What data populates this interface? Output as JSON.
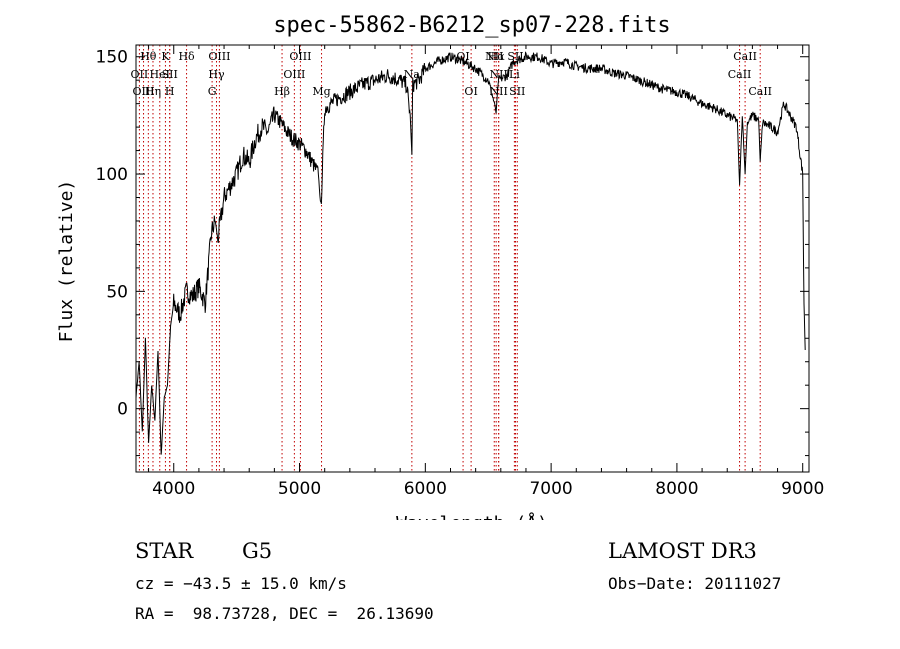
{
  "chart_data": {
    "type": "line",
    "title": "spec-55862-B6212_sp07-228.fits",
    "xlabel": "Wavelength (Å)",
    "ylabel": "Flux (relative)",
    "xlim": [
      3700,
      9050
    ],
    "ylim": [
      -27,
      155
    ],
    "xticks": [
      4000,
      5000,
      6000,
      7000,
      8000,
      9000
    ],
    "yticks": [
      0,
      50,
      100,
      150
    ],
    "series": [
      {
        "name": "spectrum",
        "x": [
          3700,
          3725,
          3750,
          3775,
          3800,
          3825,
          3850,
          3875,
          3900,
          3925,
          3950,
          3975,
          4000,
          4050,
          4100,
          4150,
          4200,
          4250,
          4300,
          4330,
          4350,
          4400,
          4450,
          4500,
          4550,
          4600,
          4650,
          4700,
          4750,
          4800,
          4850,
          4900,
          4950,
          5000,
          5050,
          5100,
          5150,
          5170,
          5200,
          5250,
          5300,
          5400,
          5500,
          5600,
          5700,
          5800,
          5850,
          5880,
          5893,
          5900,
          5950,
          6000,
          6100,
          6200,
          6300,
          6400,
          6500,
          6550,
          6563,
          6580,
          6650,
          6700,
          6800,
          6900,
          7000,
          7100,
          7200,
          7300,
          7400,
          7500,
          7600,
          7700,
          7800,
          7900,
          8000,
          8100,
          8200,
          8300,
          8400,
          8480,
          8498,
          8520,
          8542,
          8560,
          8600,
          8650,
          8662,
          8680,
          8750,
          8800,
          8850,
          8900,
          8950,
          9000,
          9010,
          9020
        ],
        "y": [
          5,
          20,
          -10,
          30,
          -15,
          10,
          -5,
          25,
          -20,
          5,
          10,
          35,
          45,
          40,
          50,
          48,
          52,
          45,
          75,
          80,
          72,
          90,
          95,
          100,
          108,
          105,
          115,
          120,
          118,
          125,
          122,
          118,
          115,
          113,
          110,
          105,
          100,
          85,
          128,
          130,
          132,
          135,
          138,
          140,
          142,
          140,
          138,
          125,
          108,
          138,
          140,
          145,
          148,
          150,
          148,
          145,
          140,
          130,
          126,
          140,
          142,
          148,
          150,
          150,
          147,
          148,
          146,
          145,
          145,
          143,
          142,
          140,
          138,
          136,
          135,
          133,
          130,
          128,
          125,
          123,
          95,
          125,
          100,
          122,
          125,
          123,
          105,
          122,
          120,
          118,
          130,
          125,
          120,
          100,
          45,
          25
        ]
      }
    ],
    "spectral_lines": [
      {
        "label": "Hθ",
        "wavelength": 3798,
        "row": 1
      },
      {
        "label": "OII",
        "wavelength": 3727,
        "row": 2
      },
      {
        "label": "OIII",
        "wavelength": 3760,
        "row": 3
      },
      {
        "label": "Hη",
        "wavelength": 3835,
        "row": 3
      },
      {
        "label": "HeI",
        "wavelength": 3889,
        "row": 2
      },
      {
        "label": "K",
        "wavelength": 3934,
        "row": 1
      },
      {
        "label": "SII",
        "wavelength": 3968,
        "row": 2
      },
      {
        "label": "H",
        "wavelength": 3968,
        "row": 3
      },
      {
        "label": "Hδ",
        "wavelength": 4102,
        "row": 1
      },
      {
        "label": "OIII",
        "wavelength": 4363,
        "row": 1
      },
      {
        "label": "Hγ",
        "wavelength": 4340,
        "row": 2
      },
      {
        "label": "G",
        "wavelength": 4305,
        "row": 3
      },
      {
        "label": "Hβ",
        "wavelength": 4861,
        "row": 3
      },
      {
        "label": "OIII",
        "wavelength": 5007,
        "row": 1
      },
      {
        "label": "OIII",
        "wavelength": 4959,
        "row": 2
      },
      {
        "label": "Mg",
        "wavelength": 5175,
        "row": 3
      },
      {
        "label": "Na",
        "wavelength": 5893,
        "row": 2
      },
      {
        "label": "OI",
        "wavelength": 6300,
        "row": 1
      },
      {
        "label": "OI",
        "wavelength": 6364,
        "row": 3
      },
      {
        "label": "NII",
        "wavelength": 6548,
        "row": 1
      },
      {
        "label": "Hα",
        "wavelength": 6563,
        "row": 1
      },
      {
        "label": "SII",
        "wavelength": 6717,
        "row": 1
      },
      {
        "label": "NII",
        "wavelength": 6583,
        "row": 2
      },
      {
        "label": "Li",
        "wavelength": 6708,
        "row": 2
      },
      {
        "label": "NII",
        "wavelength": 6583,
        "row": 3
      },
      {
        "label": "SII",
        "wavelength": 6731,
        "row": 3
      },
      {
        "label": "CaII",
        "wavelength": 8542,
        "row": 1
      },
      {
        "label": "CaII",
        "wavelength": 8498,
        "row": 2
      },
      {
        "label": "CaII",
        "wavelength": 8662,
        "row": 3
      }
    ]
  },
  "info": {
    "classification": "STAR",
    "subclass": "G5",
    "survey": "LAMOST DR3",
    "cz": "cz = −43.5 ± 15.0 km/s",
    "obs_date": "Obs−Date: 20111027",
    "radec": "RA =  98.73728, DEC =  26.13690"
  }
}
